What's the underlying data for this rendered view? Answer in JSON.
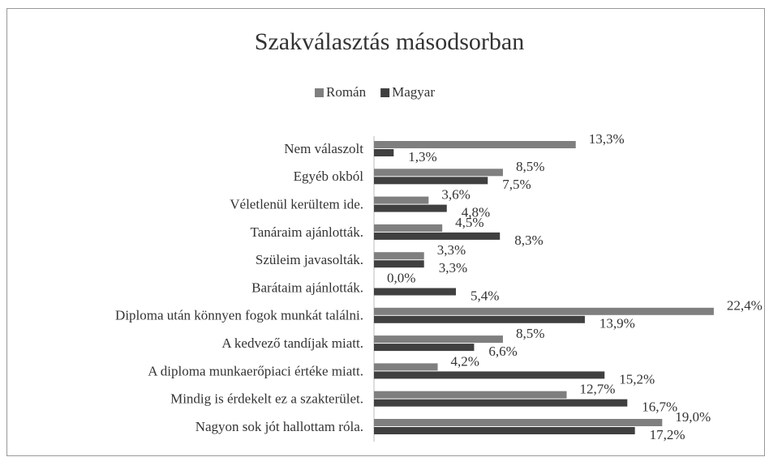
{
  "chart_data": {
    "type": "bar",
    "orientation": "horizontal",
    "title": "Szakválasztás másodsorban",
    "categories": [
      "Nem válaszolt",
      "Egyéb okból",
      "Véletlenül kerültem ide.",
      "Tanáraim ajánlották.",
      "Szüleim javasolták.",
      "Barátaim ajánlották.",
      "Diploma után könnyen fogok munkát találni.",
      "A kedvező tandíjak miatt.",
      "A diploma munkaerőpiaci értéke miatt.",
      "Mindig is érdekelt ez a szakterület.",
      "Nagyon sok jót hallottam róla."
    ],
    "series": [
      {
        "name": "Román",
        "color": "#7f7f7f",
        "values": [
          13.3,
          8.5,
          3.6,
          4.5,
          3.3,
          0.0,
          22.4,
          8.5,
          4.2,
          12.7,
          19.0
        ],
        "value_labels": [
          "13,3%",
          "8,5%",
          "3,6%",
          "4,5%",
          "3,3%",
          "0,0%",
          "22,4%",
          "8,5%",
          "4,2%",
          "12,7%",
          "19,0%"
        ]
      },
      {
        "name": "Magyar",
        "color": "#404040",
        "values": [
          1.3,
          7.5,
          4.8,
          8.3,
          3.3,
          5.4,
          13.9,
          6.6,
          15.2,
          16.7,
          17.2
        ],
        "value_labels": [
          "1,3%",
          "7,5%",
          "4,8%",
          "8,3%",
          "3,3%",
          "5,4%",
          "13,9%",
          "6,6%",
          "15,2%",
          "16,7%",
          "17,2%"
        ]
      }
    ],
    "legend": "top"
  }
}
